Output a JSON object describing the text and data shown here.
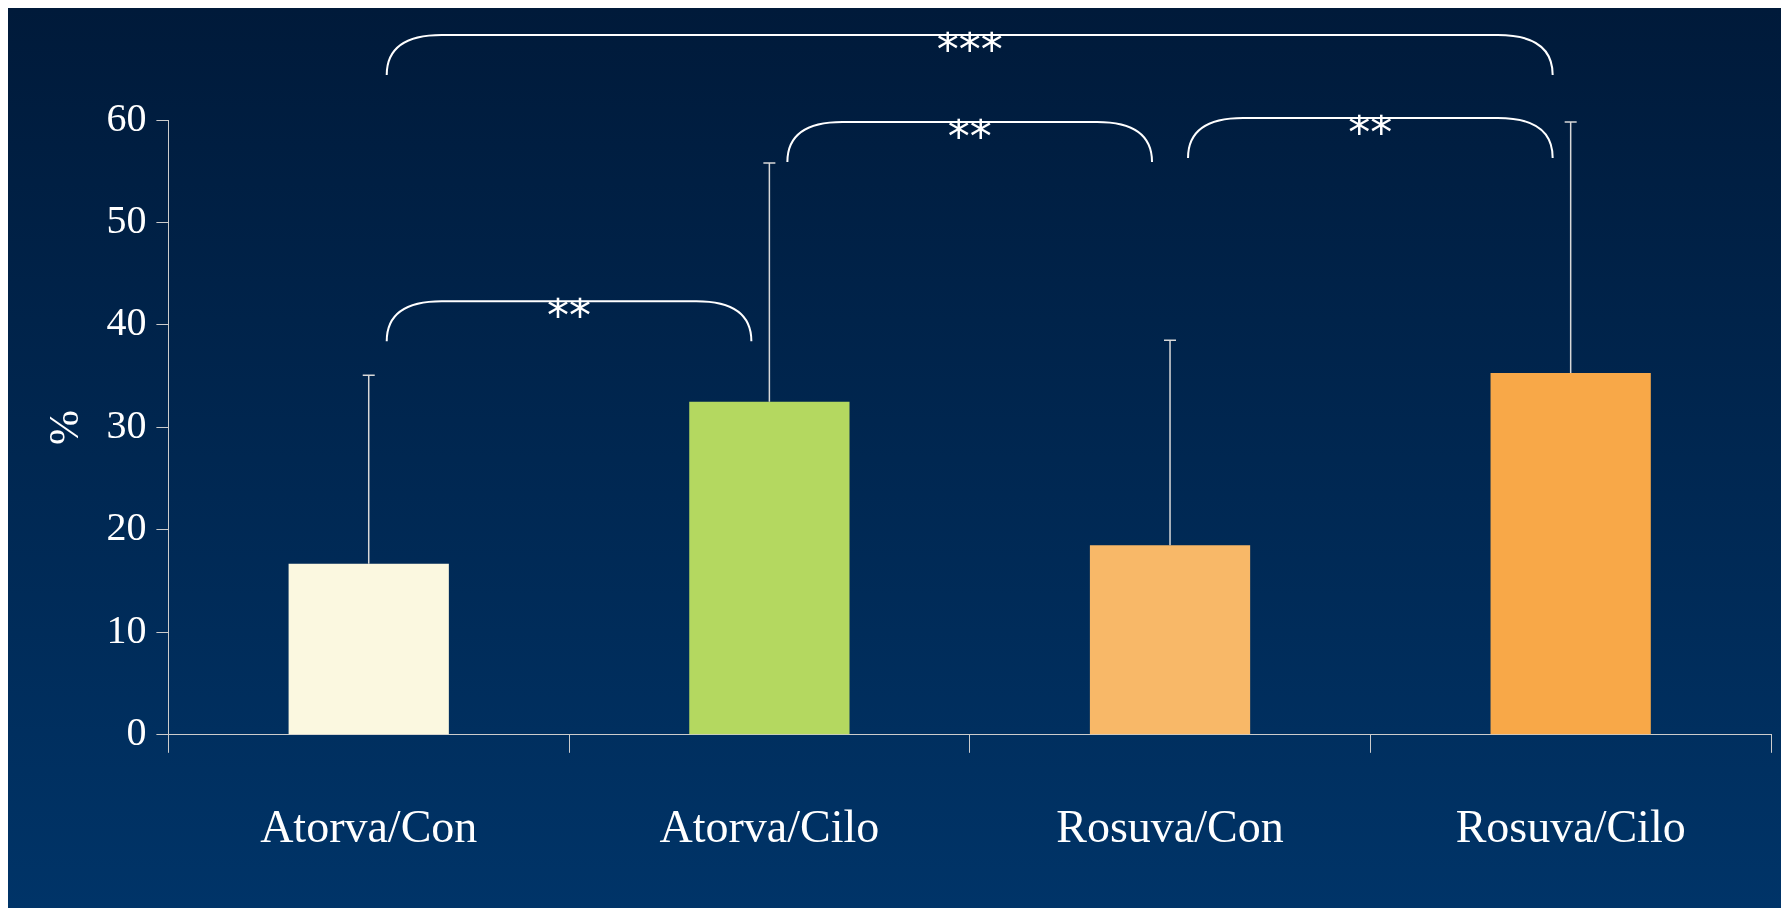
{
  "chart_data": {
    "type": "bar",
    "ylabel": "%",
    "categories": [
      "Atorva/Con",
      "Atorva/Cilo",
      "Rosuva/Con",
      "Rosuva/Cilo"
    ],
    "values": [
      16.7,
      32.5,
      18.5,
      35.3
    ],
    "colors": [
      "#fbf8e0",
      "#b4d860",
      "#f8b868",
      "#f8a848"
    ],
    "errors": [
      [
        16.7,
        35.1
      ],
      [
        32.5,
        55.8
      ],
      [
        18.5,
        38.5
      ],
      [
        35.3,
        59.8
      ]
    ],
    "ylim": [
      0,
      60
    ],
    "yticks": [
      0,
      10,
      20,
      30,
      40,
      50,
      60
    ],
    "grid": false,
    "legend": false,
    "annotations": [
      "**",
      "**",
      "**",
      "***"
    ]
  }
}
